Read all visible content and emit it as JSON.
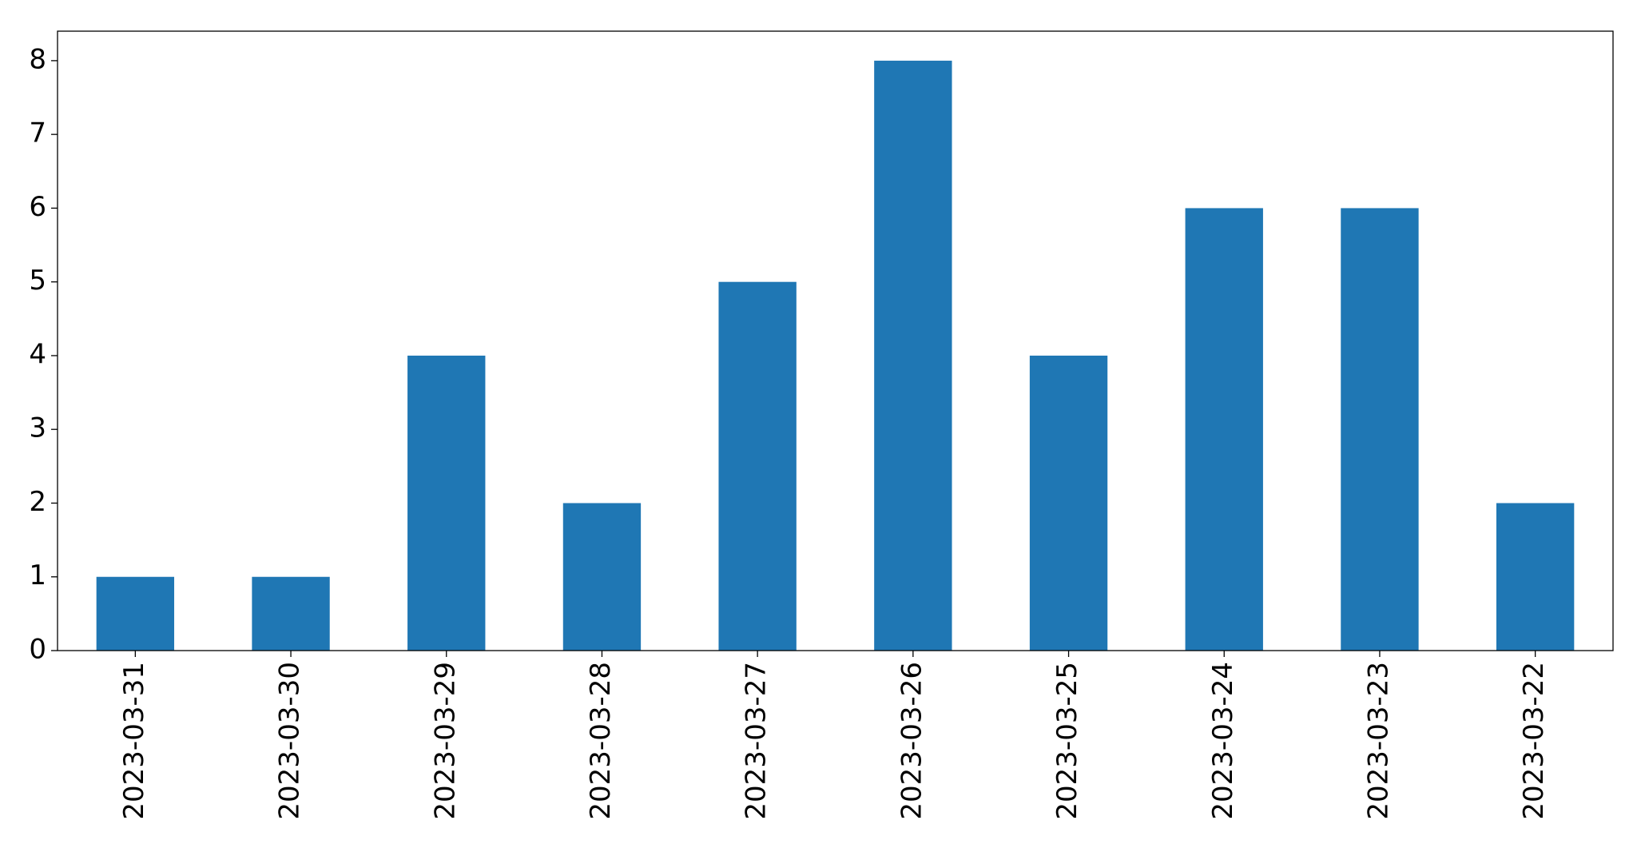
{
  "chart_data": {
    "type": "bar",
    "categories": [
      "2023-03-31",
      "2023-03-30",
      "2023-03-29",
      "2023-03-28",
      "2023-03-27",
      "2023-03-26",
      "2023-03-25",
      "2023-03-24",
      "2023-03-23",
      "2023-03-22"
    ],
    "values": [
      1,
      1,
      4,
      2,
      5,
      8,
      4,
      6,
      6,
      2
    ],
    "color": "#1f77b4",
    "ylim": [
      0,
      8.4
    ],
    "yticks": [
      0,
      1,
      2,
      3,
      4,
      5,
      6,
      7,
      8
    ],
    "grid": false
  }
}
